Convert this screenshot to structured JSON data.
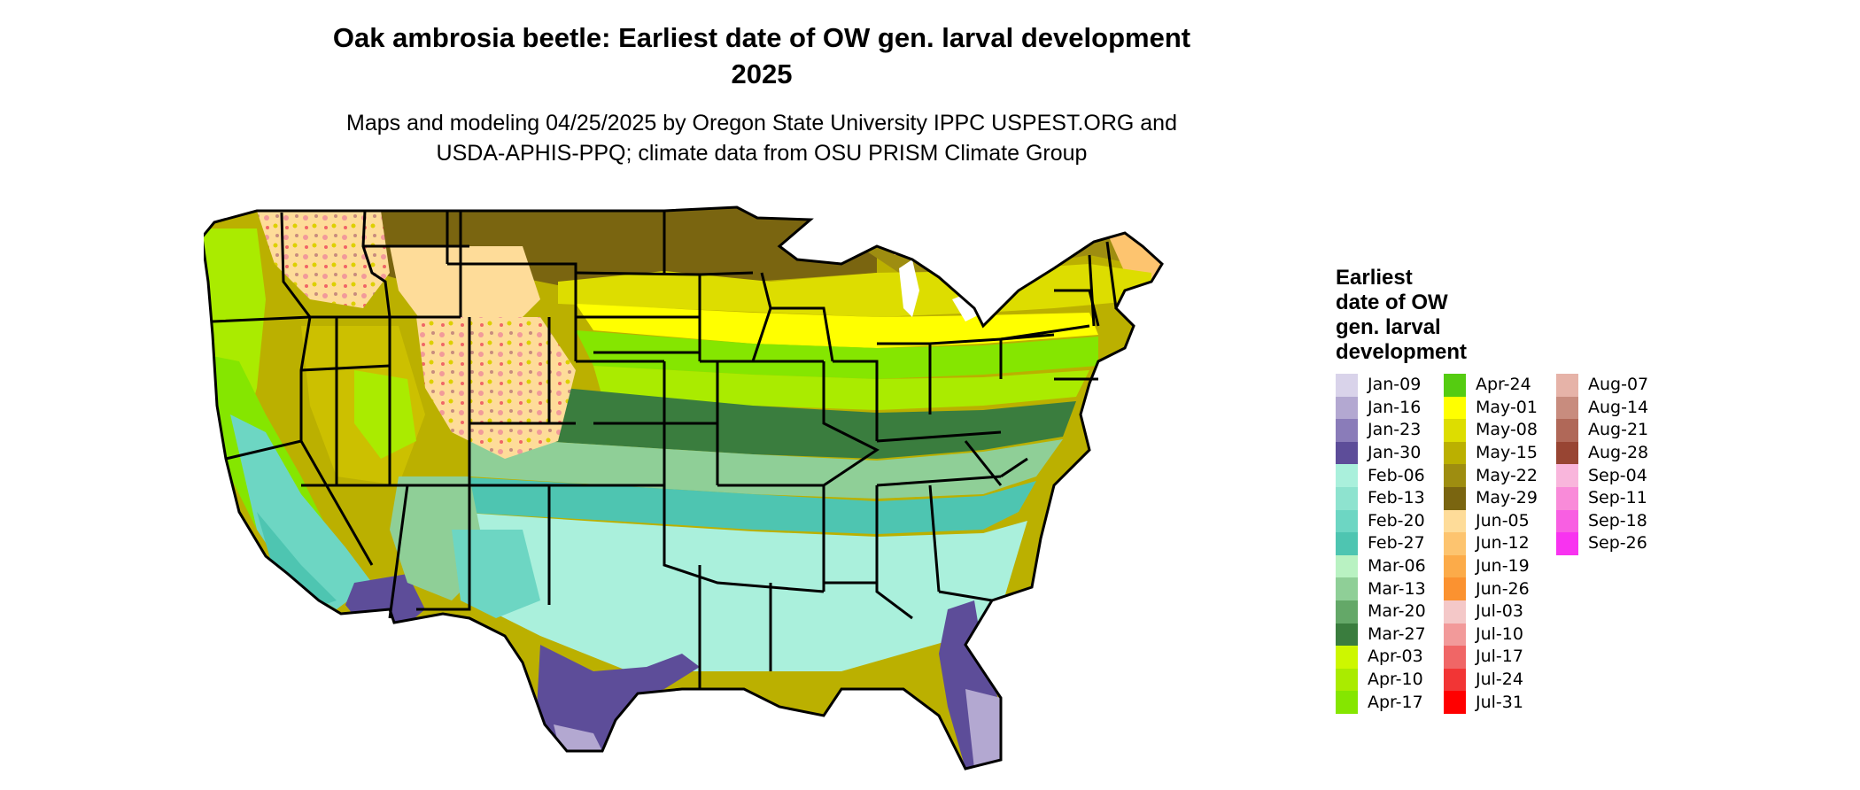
{
  "header": {
    "title_line1": "Oak ambrosia beetle: Earliest date of OW gen. larval development",
    "title_line2": "2025",
    "subtitle_line1": "Maps and modeling 04/25/2025 by Oregon State University IPPC USPEST.ORG and",
    "subtitle_line2": "USDA-APHIS-PPQ; climate data from OSU PRISM Climate Group"
  },
  "legend": {
    "title_lines": [
      "Earliest",
      "date of OW",
      "gen. larval",
      "development"
    ],
    "columns": [
      [
        {
          "label": "Jan-09",
          "color": "#d9d3ea"
        },
        {
          "label": "Jan-16",
          "color": "#b3a8d1"
        },
        {
          "label": "Jan-23",
          "color": "#8a7cb9"
        },
        {
          "label": "Jan-30",
          "color": "#5d4d99"
        },
        {
          "label": "Feb-06",
          "color": "#aaf0dc"
        },
        {
          "label": "Feb-13",
          "color": "#8ee3cf"
        },
        {
          "label": "Feb-20",
          "color": "#6dd6c3"
        },
        {
          "label": "Feb-27",
          "color": "#4ec5b1"
        },
        {
          "label": "Mar-06",
          "color": "#b9f2c2"
        },
        {
          "label": "Mar-13",
          "color": "#8fcf97"
        },
        {
          "label": "Mar-20",
          "color": "#64a868"
        },
        {
          "label": "Mar-27",
          "color": "#3a7d3e"
        },
        {
          "label": "Apr-03",
          "color": "#cdf700"
        },
        {
          "label": "Apr-10",
          "color": "#aaeb00"
        },
        {
          "label": "Apr-17",
          "color": "#85e600"
        }
      ],
      [
        {
          "label": "Apr-24",
          "color": "#55cc11"
        },
        {
          "label": "May-01",
          "color": "#ffff00"
        },
        {
          "label": "May-08",
          "color": "#dddd00"
        },
        {
          "label": "May-15",
          "color": "#bbb000"
        },
        {
          "label": "May-22",
          "color": "#9e8d10"
        },
        {
          "label": "May-29",
          "color": "#7a6510"
        },
        {
          "label": "Jun-05",
          "color": "#fedc99"
        },
        {
          "label": "Jun-12",
          "color": "#fdc46f"
        },
        {
          "label": "Jun-19",
          "color": "#fcab49"
        },
        {
          "label": "Jun-26",
          "color": "#fb9230"
        },
        {
          "label": "Jul-03",
          "color": "#f4c8c8"
        },
        {
          "label": "Jul-10",
          "color": "#f29a9a"
        },
        {
          "label": "Jul-17",
          "color": "#f06666"
        },
        {
          "label": "Jul-24",
          "color": "#f23535"
        },
        {
          "label": "Jul-31",
          "color": "#ff0000"
        }
      ],
      [
        {
          "label": "Aug-07",
          "color": "#e6b3a8"
        },
        {
          "label": "Aug-14",
          "color": "#c88c7e"
        },
        {
          "label": "Aug-21",
          "color": "#b06858"
        },
        {
          "label": "Aug-28",
          "color": "#984533"
        },
        {
          "label": "Sep-04",
          "color": "#f9b6dc"
        },
        {
          "label": "Sep-11",
          "color": "#f98bd9"
        },
        {
          "label": "Sep-18",
          "color": "#f85fe2"
        },
        {
          "label": "Sep-26",
          "color": "#f833f0"
        }
      ]
    ]
  }
}
